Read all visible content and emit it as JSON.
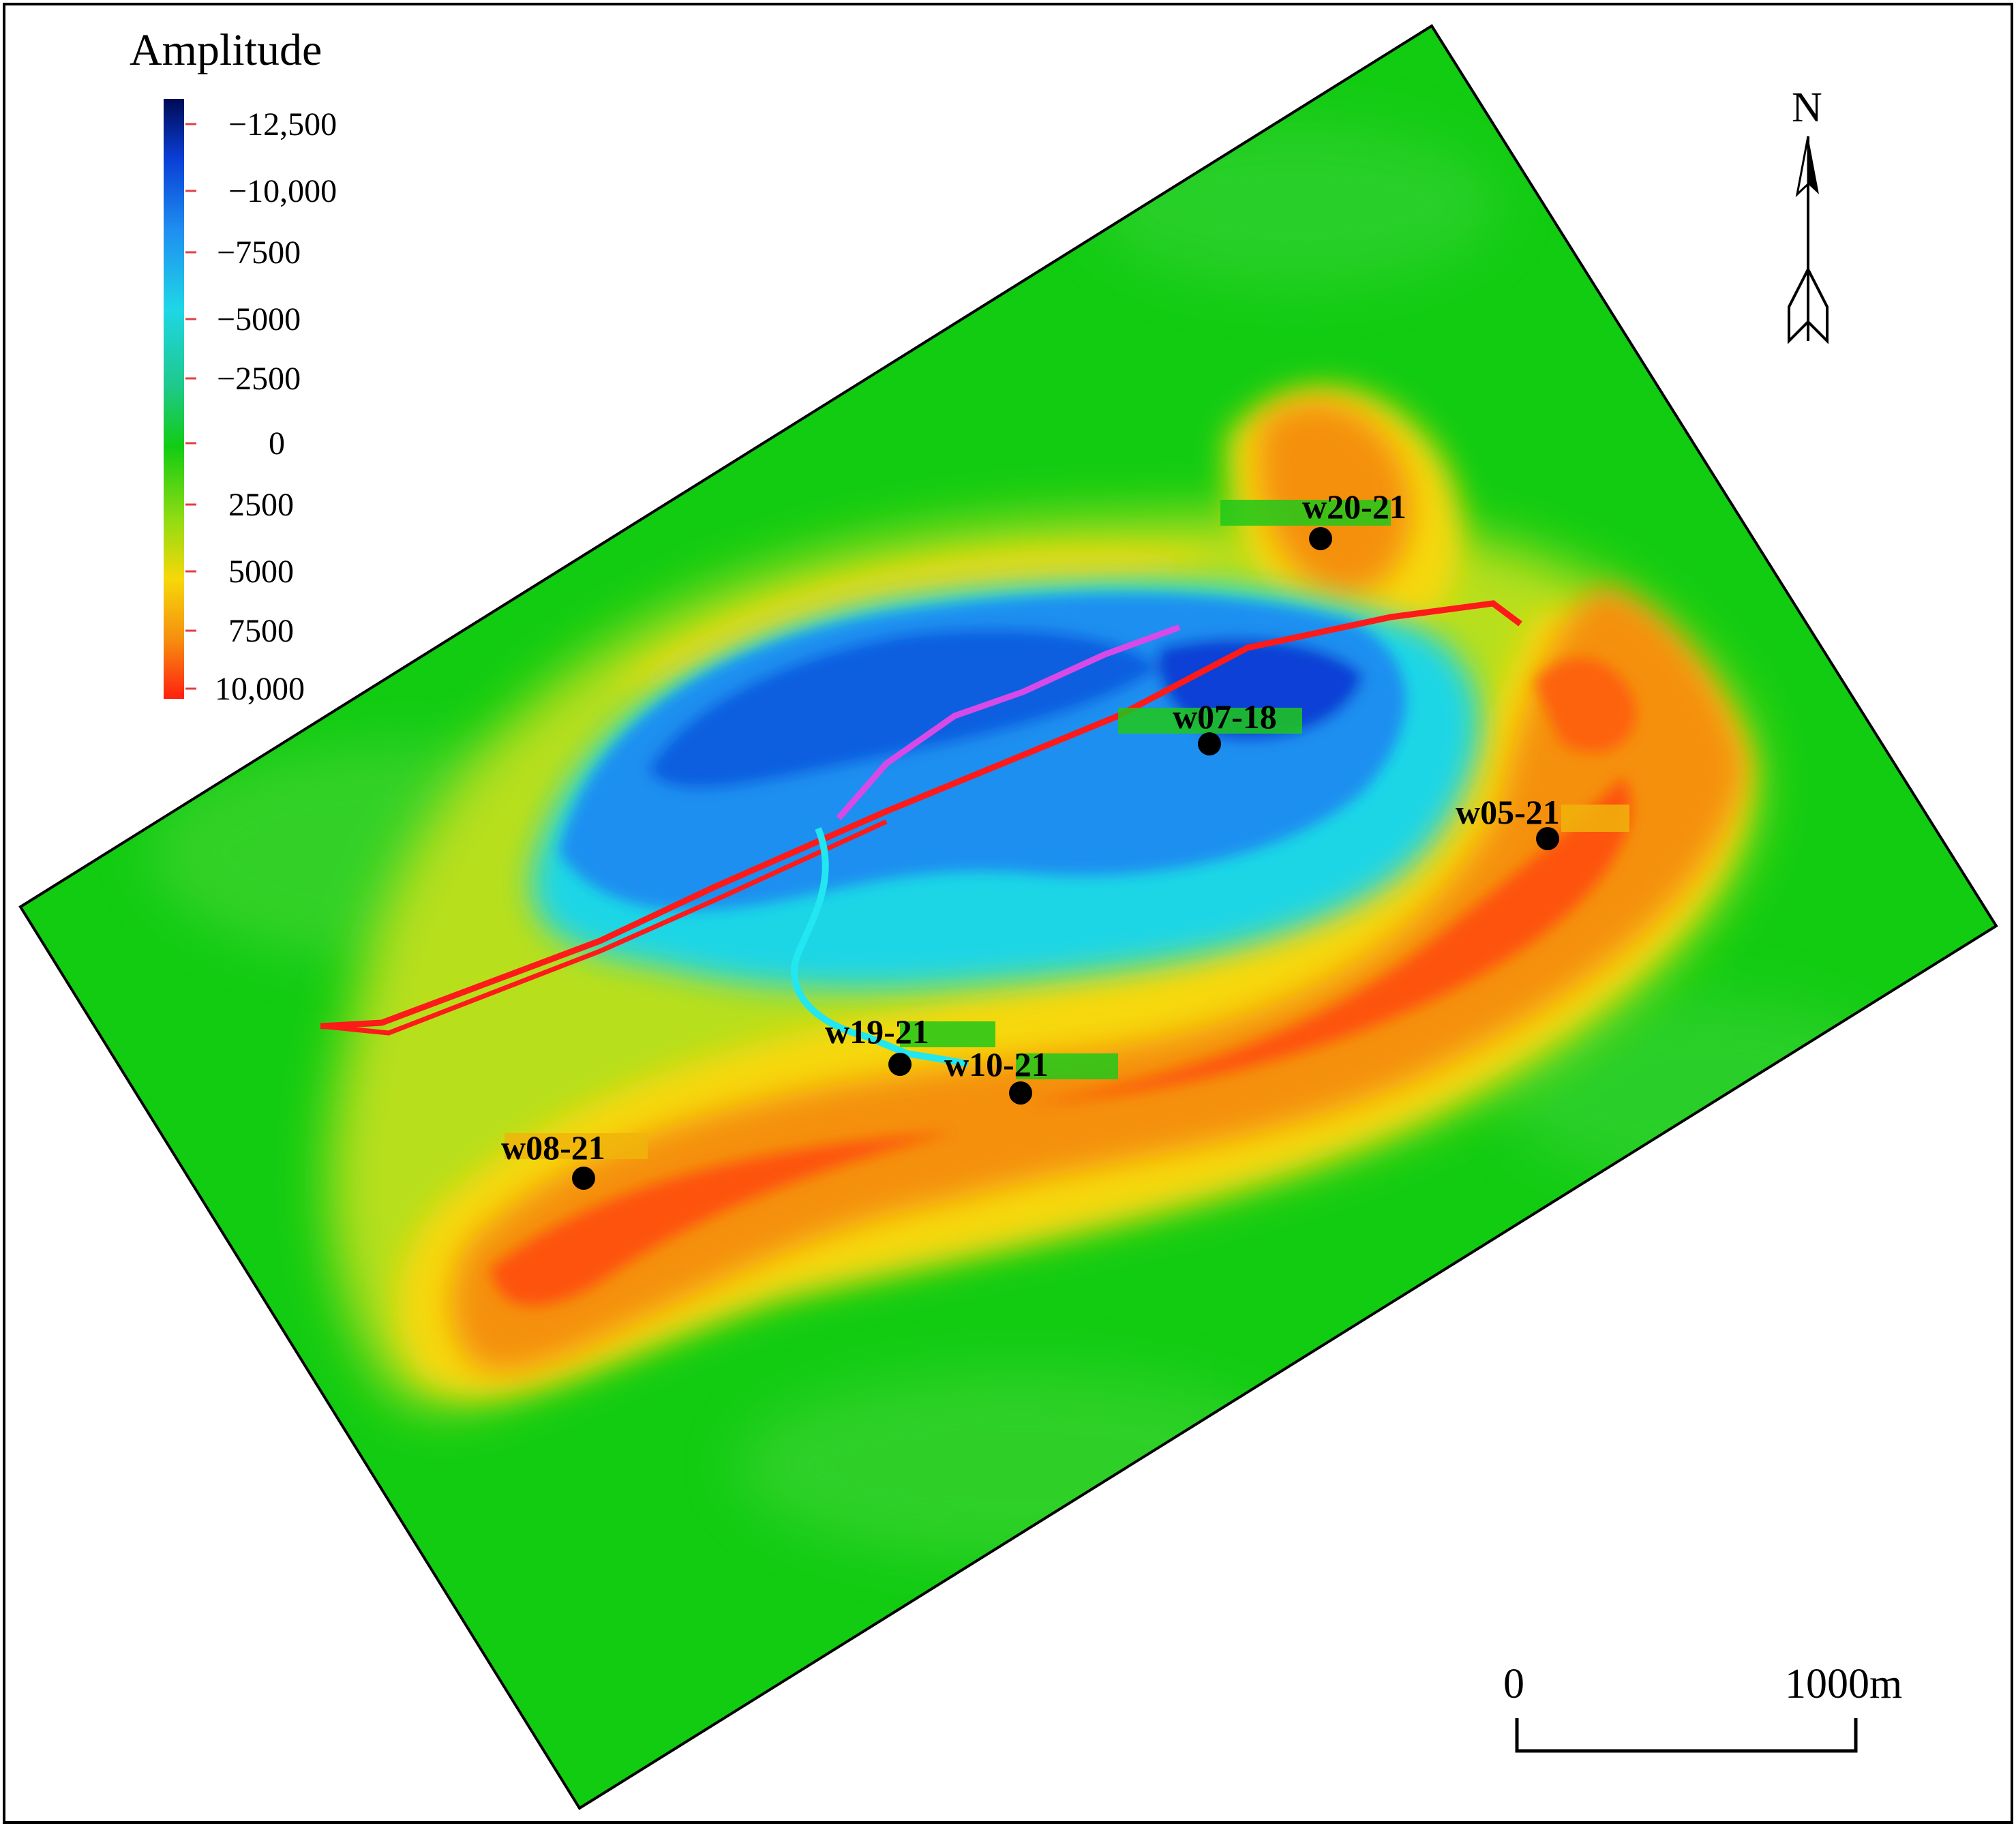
{
  "legend": {
    "title": "Amplitude",
    "ticks": [
      "−12,500",
      "−10,000",
      "−7500",
      "−5000",
      "−2500",
      "0",
      "2500",
      "5000",
      "7500",
      "10,000"
    ],
    "colors": [
      "#000a55",
      "#0a3fd6",
      "#1f8ff0",
      "#1fd6e6",
      "#1ec98a",
      "#12cc12",
      "#8fdc12",
      "#f6d80a",
      "#f5900f",
      "#ff2010"
    ]
  },
  "north": {
    "label": "N"
  },
  "scale_bar": {
    "start_label": "0",
    "end_label": "1000m"
  },
  "wells": [
    {
      "name": "w20-21"
    },
    {
      "name": "w07-18"
    },
    {
      "name": "w05-21"
    },
    {
      "name": "w19-21"
    },
    {
      "name": "w10-21"
    },
    {
      "name": "w08-21"
    }
  ],
  "colors": {
    "background": "#12cc12",
    "fault_red": "#ff1a1a",
    "channel_magenta": "#d84ae8",
    "channel_cyan": "#22e6f0",
    "well_marker": "#000000"
  }
}
